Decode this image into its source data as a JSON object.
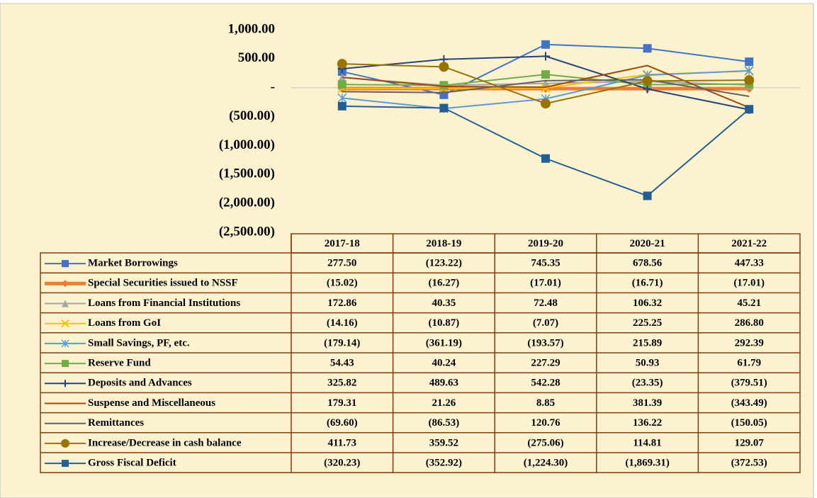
{
  "chart_data": {
    "type": "line",
    "categories": [
      "2017-18",
      "2018-19",
      "2019-20",
      "2020-21",
      "2021-22"
    ],
    "ylim": [
      -2500,
      1000
    ],
    "yticks": [
      {
        "value": 1000,
        "label": "1,000.00"
      },
      {
        "value": 500,
        "label": "500.00"
      },
      {
        "value": 0,
        "label": "-"
      },
      {
        "value": -500,
        "label": "(500.00)"
      },
      {
        "value": -1000,
        "label": "(1,000.00)"
      },
      {
        "value": -1500,
        "label": "(1,500.00)"
      },
      {
        "value": -2000,
        "label": "(2,000.00)"
      },
      {
        "value": -2500,
        "label": "(2,500.00)"
      }
    ],
    "series": [
      {
        "name": "Market Borrowings",
        "color": "#4472c4",
        "marker": "square",
        "width": 2,
        "values": [
          277.5,
          -123.22,
          745.35,
          678.56,
          447.33
        ],
        "value_labels": [
          "277.50",
          "(123.22)",
          "745.35",
          "678.56",
          "447.33"
        ]
      },
      {
        "name": "Special Securities issued to NSSF",
        "color": "#ed7d31",
        "marker": "diamond",
        "width": 5,
        "values": [
          -15.02,
          -16.27,
          -17.01,
          -16.71,
          -17.01
        ],
        "value_labels": [
          "(15.02)",
          "(16.27)",
          "(17.01)",
          "(16.71)",
          "(17.01)"
        ]
      },
      {
        "name": "Loans from Financial Institutions",
        "color": "#a5a5a5",
        "marker": "triangle",
        "width": 2,
        "values": [
          172.86,
          40.35,
          72.48,
          106.32,
          45.21
        ],
        "value_labels": [
          "172.86",
          "40.35",
          "72.48",
          "106.32",
          "45.21"
        ]
      },
      {
        "name": "Loans from GoI",
        "color": "#ffc000",
        "marker": "x",
        "width": 2,
        "values": [
          -14.16,
          -10.87,
          -7.07,
          225.25,
          286.8
        ],
        "value_labels": [
          "(14.16)",
          "(10.87)",
          "(7.07)",
          "225.25",
          "286.80"
        ]
      },
      {
        "name": "Small Savings, PF, etc.",
        "color": "#5b9bd5",
        "marker": "star",
        "width": 2,
        "values": [
          -179.14,
          -361.19,
          -193.57,
          215.89,
          292.39
        ],
        "value_labels": [
          "(179.14)",
          "(361.19)",
          "(193.57)",
          "215.89",
          "292.39"
        ]
      },
      {
        "name": "Reserve Fund",
        "color": "#70ad47",
        "marker": "square",
        "width": 2,
        "values": [
          54.43,
          40.24,
          227.29,
          50.93,
          61.79
        ],
        "value_labels": [
          "54.43",
          "40.24",
          "227.29",
          "50.93",
          "61.79"
        ]
      },
      {
        "name": "Deposits and Advances",
        "color": "#264478",
        "marker": "plus",
        "width": 2,
        "values": [
          325.82,
          489.63,
          542.28,
          -23.35,
          -379.51
        ],
        "value_labels": [
          "325.82",
          "489.63",
          "542.28",
          "(23.35)",
          "(379.51)"
        ]
      },
      {
        "name": "Suspense and Miscellaneous",
        "color": "#9e480e",
        "marker": "none",
        "width": 2,
        "values": [
          179.31,
          21.26,
          8.85,
          381.39,
          -343.49
        ],
        "value_labels": [
          "179.31",
          "21.26",
          "8.85",
          "381.39",
          "(343.49)"
        ]
      },
      {
        "name": "Remittances",
        "color": "#636363",
        "marker": "none",
        "width": 2,
        "values": [
          -69.6,
          -86.53,
          120.76,
          136.22,
          -150.05
        ],
        "value_labels": [
          "(69.60)",
          "(86.53)",
          "120.76",
          "136.22",
          "(150.05)"
        ]
      },
      {
        "name": "Increase/Decrease in cash balance",
        "color": "#997300",
        "marker": "circle",
        "width": 2,
        "values": [
          411.73,
          359.52,
          -275.06,
          114.81,
          129.07
        ],
        "value_labels": [
          "411.73",
          "359.52",
          "(275.06)",
          "114.81",
          "129.07"
        ]
      },
      {
        "name": "Gross Fiscal Deficit",
        "color": "#255e91",
        "marker": "square",
        "width": 2,
        "values": [
          -320.23,
          -352.92,
          -1224.3,
          -1869.31,
          -372.53
        ],
        "value_labels": [
          "(320.23)",
          "(352.92)",
          "(1,224.30)",
          "(1,869.31)",
          "(372.53)"
        ]
      }
    ]
  }
}
